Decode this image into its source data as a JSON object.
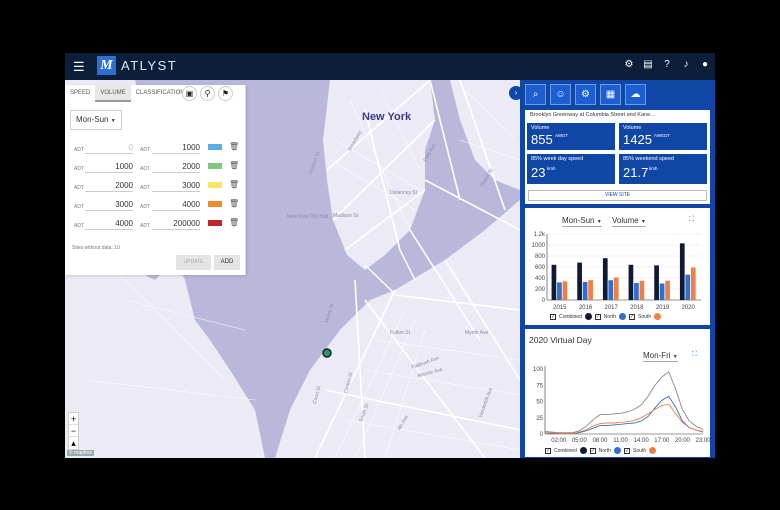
{
  "topbar": {
    "logo_letter": "M",
    "brand": "ATLYST",
    "menu_icon": "menu-icon",
    "icons": [
      "gear-icon",
      "chat-icon",
      "help-icon",
      "bell-icon",
      "user-icon"
    ]
  },
  "map": {
    "city_label": "New York",
    "street_labels": [
      "Broadway",
      "New York City Hall",
      "Madison St",
      "Flatbush Ave",
      "Atlantic Ave",
      "Court St",
      "Clinton St",
      "Smith St",
      "Henry St",
      "Fulton St",
      "Myrtle Ave",
      "Park Ave",
      "Delancey St",
      "Grand St",
      "Hudson St",
      "Vanderbilt Ave",
      "4th Ave"
    ],
    "zoom_in": "+",
    "zoom_out": "−",
    "compass": "▴",
    "attribution": "© mapbox"
  },
  "panel": {
    "tabs": [
      "SPEED",
      "VOLUME",
      "CLASSIFICATION"
    ],
    "active_tab": "VOLUME",
    "tab_icons": [
      "image-icon",
      "route-icon",
      "pin-icon"
    ],
    "day_select": "Mon-Sun",
    "adt_label": "ADT",
    "rows": [
      {
        "from": "0",
        "to": "1000",
        "color": "#5aaee6"
      },
      {
        "from": "1000",
        "to": "2000",
        "color": "#7fc97f"
      },
      {
        "from": "2000",
        "to": "3000",
        "color": "#f5e663"
      },
      {
        "from": "3000",
        "to": "4000",
        "color": "#f08a2e"
      },
      {
        "from": "4000",
        "to": "200000",
        "color": "#c0262d"
      }
    ],
    "no_data": "Sites without data: 10",
    "update_label": "UPDATE",
    "add_label": "ADD"
  },
  "sidebar": {
    "icons": [
      "search-icon",
      "users-icon",
      "bike-icon",
      "calendar-icon",
      "cloud-upload-icon"
    ],
    "site_name": "Brooklyn Greenway at Columbia Street and Kane...",
    "stats": {
      "volume1_title": "Volume",
      "volume1_value": "855",
      "volume1_unit": "AWDT",
      "volume2_title": "Volume",
      "volume2_value": "1425",
      "volume2_unit": "AWEDT",
      "speed1_title": "85% week day speed",
      "speed1_value": "23",
      "speed1_unit": "kmh",
      "speed2_title": "85% weekend speed",
      "speed2_value": "21.7",
      "speed2_unit": "kmh"
    },
    "view_site": "VIEW SITE",
    "bar_card": {
      "day_select": "Mon-Sun",
      "metric_select": "Volume"
    },
    "vd_card": {
      "title": "2020 Virtual Day",
      "day_select": "Mon-Fri"
    },
    "legend": {
      "combined": "Combined",
      "north": "North",
      "south": "South"
    },
    "colors": {
      "combined": "#0f1a33",
      "north": "#2f6fd1",
      "south": "#f07f45"
    }
  },
  "chart_data": [
    {
      "type": "bar",
      "categories": [
        "2015",
        "2016",
        "2017",
        "2018",
        "2019",
        "2020"
      ],
      "ytick_labels": [
        "0",
        "200",
        "400",
        "600",
        "800",
        "1000",
        "1.2k"
      ],
      "ylim": [
        0,
        1200
      ],
      "series": [
        {
          "name": "Combined",
          "values": [
            640,
            680,
            760,
            640,
            630,
            1030
          ]
        },
        {
          "name": "North",
          "values": [
            320,
            330,
            360,
            310,
            300,
            460
          ]
        },
        {
          "name": "South",
          "values": [
            340,
            360,
            410,
            350,
            350,
            590
          ]
        }
      ]
    },
    {
      "type": "line",
      "x": [
        "00:00",
        "01:00",
        "02:00",
        "03:00",
        "04:00",
        "05:00",
        "06:00",
        "07:00",
        "08:00",
        "09:00",
        "10:00",
        "11:00",
        "12:00",
        "13:00",
        "14:00",
        "15:00",
        "16:00",
        "17:00",
        "18:00",
        "19:00",
        "20:00",
        "21:00",
        "22:00",
        "23:00"
      ],
      "xtick_labels": [
        "02:00",
        "05:00",
        "08:00",
        "11:00",
        "14:00",
        "17:00",
        "20:00",
        "23:00"
      ],
      "ytick_labels": [
        "0",
        "25",
        "50",
        "75",
        "100"
      ],
      "ylim": [
        0,
        105
      ],
      "series": [
        {
          "name": "Combined",
          "values": [
            4,
            3,
            2,
            2,
            2,
            5,
            12,
            22,
            30,
            30,
            31,
            32,
            34,
            38,
            45,
            58,
            75,
            88,
            96,
            70,
            38,
            20,
            12,
            7
          ]
        },
        {
          "name": "North",
          "values": [
            2,
            1,
            1,
            1,
            1,
            2,
            5,
            9,
            13,
            13,
            14,
            15,
            16,
            17,
            20,
            27,
            40,
            52,
            58,
            42,
            20,
            10,
            6,
            3
          ]
        },
        {
          "name": "South",
          "values": [
            2,
            2,
            1,
            1,
            1,
            3,
            7,
            12,
            16,
            17,
            17,
            18,
            19,
            21,
            25,
            31,
            38,
            44,
            46,
            32,
            18,
            10,
            6,
            4
          ]
        }
      ]
    }
  ]
}
